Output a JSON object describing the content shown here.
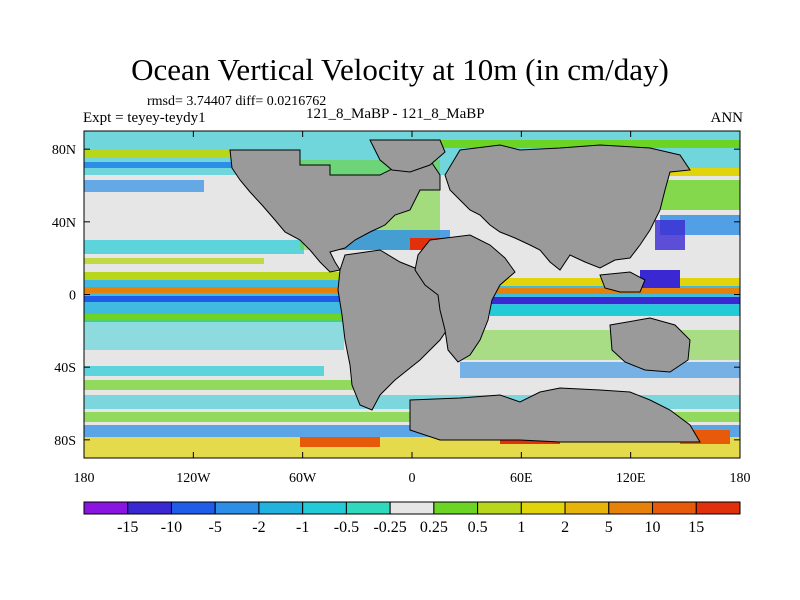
{
  "title": "Ocean Vertical Velocity at 10m (in cm/day)",
  "stats": "rmsd= 3.74407  diff= 0.0216762",
  "experiment": "Expt = teyey-teydy1",
  "case_label": "121_8_MaBP - 121_8_MaBP",
  "season": "ANN",
  "map": {
    "longitude_ticks": [
      {
        "lon": -180,
        "label": "180"
      },
      {
        "lon": -120,
        "label": "120W"
      },
      {
        "lon": -60,
        "label": "60W"
      },
      {
        "lon": 0,
        "label": "0"
      },
      {
        "lon": 60,
        "label": "60E"
      },
      {
        "lon": 120,
        "label": "120E"
      },
      {
        "lon": 180,
        "label": "180"
      }
    ],
    "latitude_ticks": [
      {
        "lat": 80,
        "label": "80N"
      },
      {
        "lat": 40,
        "label": "40N"
      },
      {
        "lat": 0,
        "label": "0"
      },
      {
        "lat": -40,
        "label": "40S"
      },
      {
        "lat": -80,
        "label": "80S"
      }
    ],
    "lat_range": [
      -90,
      90
    ],
    "lon_range": [
      -180,
      180
    ],
    "land_color": "#9a9a9a"
  },
  "colorbar": {
    "labels": [
      "-15",
      "-10",
      "-5",
      "-2",
      "-1",
      "-0.5",
      "-0.25",
      "0.25",
      "0.5",
      "1",
      "2",
      "5",
      "10",
      "15"
    ],
    "colors": [
      "#8a14e0",
      "#3a28d2",
      "#1f5ce8",
      "#2c8ee6",
      "#22b2df",
      "#22cbd6",
      "#2fd9bd",
      "#e6e6e6",
      "#6cd424",
      "#b8d61c",
      "#e2d40a",
      "#e6b40a",
      "#e6820a",
      "#e65a0a",
      "#e0300c"
    ]
  }
}
